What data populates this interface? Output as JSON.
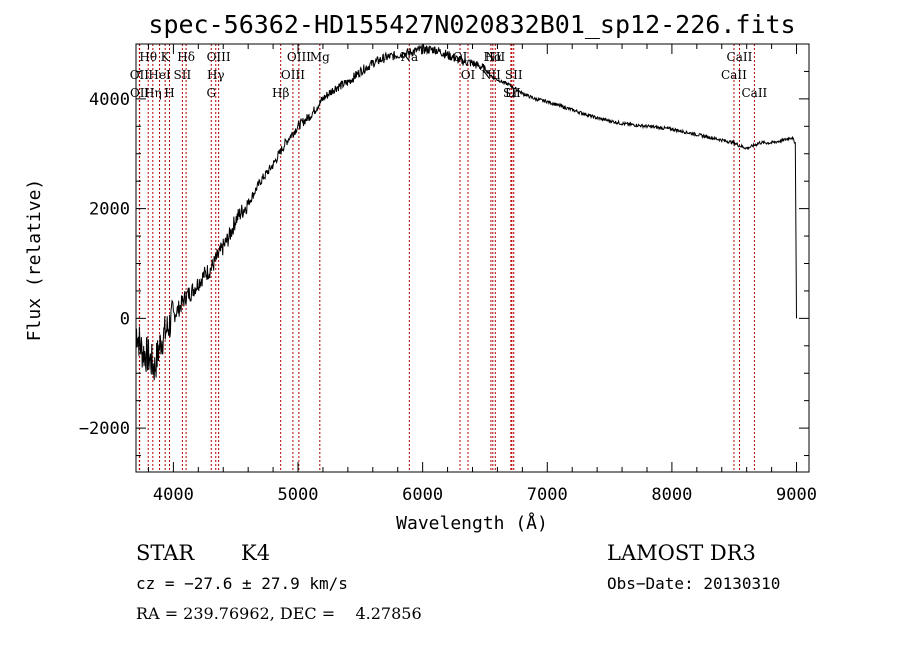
{
  "chart_data": {
    "type": "line",
    "title": "spec-56362-HD155427N020832B01_sp12-226.fits",
    "xlabel": "Wavelength (Å)",
    "ylabel": "Flux (relative)",
    "xlim": [
      3700,
      9100
    ],
    "ylim": [
      -2800,
      5000
    ],
    "x_ticks": [
      4000,
      5000,
      6000,
      7000,
      8000,
      9000
    ],
    "x_tick_labels": [
      "4000",
      "5000",
      "6000",
      "7000",
      "8000",
      "9000"
    ],
    "y_ticks": [
      -2000,
      0,
      2000,
      4000
    ],
    "y_tick_labels": [
      "−2000",
      "0",
      "2000",
      "4000"
    ],
    "grid": false,
    "series": [
      {
        "x": [
          3700,
          3750,
          3800,
          3850,
          3900,
          3950,
          4000,
          4050,
          4100,
          4150,
          4200,
          4250,
          4300,
          4350,
          4400,
          4450,
          4500,
          4600,
          4700,
          4800,
          4900,
          5000,
          5100,
          5200,
          5300,
          5400,
          5500,
          5600,
          5700,
          5800,
          5900,
          6000,
          6100,
          6200,
          6300,
          6400,
          6500,
          6560,
          6600,
          6700,
          6800,
          6900,
          7000,
          7200,
          7400,
          7600,
          7800,
          8000,
          8200,
          8400,
          8500,
          8540,
          8600,
          8660,
          8700,
          8800,
          8900,
          8960,
          8990,
          9000
        ],
        "y": [
          -200,
          -600,
          -700,
          -900,
          -400,
          -200,
          50,
          200,
          400,
          500,
          650,
          800,
          900,
          1100,
          1300,
          1500,
          1800,
          2100,
          2500,
          2800,
          3200,
          3500,
          3700,
          4000,
          4200,
          4300,
          4500,
          4650,
          4750,
          4800,
          4850,
          4900,
          4900,
          4800,
          4700,
          4650,
          4550,
          4400,
          4350,
          4250,
          4100,
          4000,
          3950,
          3800,
          3650,
          3550,
          3500,
          3450,
          3350,
          3250,
          3200,
          3150,
          3100,
          3150,
          3200,
          3200,
          3250,
          3300,
          3200,
          0
        ]
      }
    ],
    "lines": [
      {
        "labels": [
          "Hθ",
          "OII",
          "OII"
        ],
        "wavelengths": [
          3798,
          3727,
          3729
        ]
      },
      {
        "labels": [
          "K",
          "HeI",
          "Hη"
        ],
        "wavelengths": [
          3934,
          3889,
          3835
        ]
      },
      {
        "labels": [
          "Hδ",
          "SII",
          "H"
        ],
        "wavelengths": [
          4102,
          4072,
          3969
        ]
      },
      {
        "labels": [
          "OIII",
          "Hγ",
          "G"
        ],
        "wavelengths": [
          4363,
          4340,
          4304
        ]
      },
      {
        "labels": [
          "OIII",
          "OIII",
          "Hβ"
        ],
        "wavelengths": [
          5007,
          4959,
          4861
        ]
      },
      {
        "labels": [
          "Mg"
        ],
        "wavelengths": [
          5175
        ]
      },
      {
        "labels": [
          "Na"
        ],
        "wavelengths": [
          5893
        ]
      },
      {
        "labels": [
          "OI",
          "OI"
        ],
        "wavelengths": [
          6300,
          6364
        ]
      },
      {
        "labels": [
          "Hα",
          "NII",
          "SII",
          "NII",
          "SII",
          "Li"
        ],
        "wavelengths": [
          6563,
          6548,
          6716,
          6583,
          6731,
          6708
        ]
      },
      {
        "labels": [
          "CaII",
          "CaII",
          "CaII"
        ],
        "wavelengths": [
          8542,
          8498,
          8662
        ]
      }
    ]
  },
  "info": {
    "class_label": "STAR",
    "subclass": "K4",
    "survey": "LAMOST DR3",
    "cz": "cz = −27.6 ± 27.9 km/s",
    "obs_date": "Obs−Date: 20130310",
    "coords": "RA = 239.76962, DEC =    4.27856"
  }
}
